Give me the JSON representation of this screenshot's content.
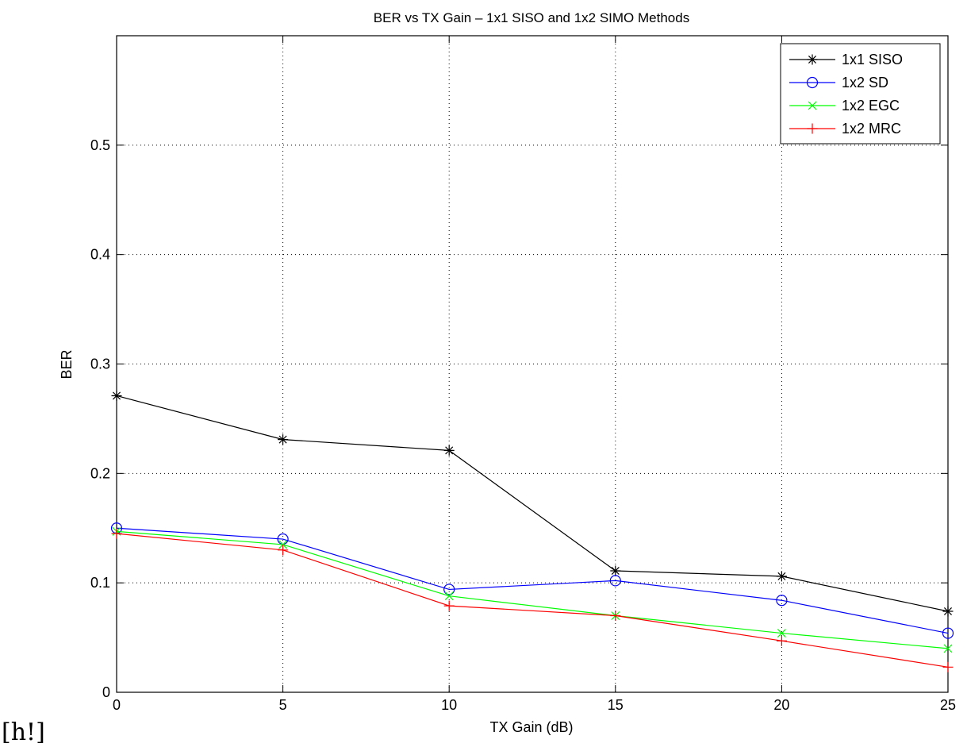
{
  "chart_data": {
    "type": "line",
    "title": "BER vs TX Gain – 1x1 SISO and 1x2 SIMO Methods",
    "xlabel": "TX Gain (dB)",
    "ylabel": "BER",
    "xlim": [
      0,
      25
    ],
    "ylim": [
      0,
      0.6
    ],
    "x_ticks": [
      0,
      5,
      10,
      15,
      20,
      25
    ],
    "y_ticks": [
      0,
      0.1,
      0.2,
      0.3,
      0.4,
      0.5
    ],
    "x_tick_labels": [
      "0",
      "5",
      "10",
      "15",
      "20",
      "25"
    ],
    "y_tick_labels": [
      "0",
      "0.1",
      "0.2",
      "0.3",
      "0.4",
      "0.5"
    ],
    "grid": true,
    "legend_position": "top-right",
    "x": [
      0,
      5,
      10,
      15,
      20,
      25
    ],
    "series": [
      {
        "name": "1x1 SISO",
        "color": "#000000",
        "marker": "asterisk",
        "values": [
          0.271,
          0.231,
          0.221,
          0.111,
          0.106,
          0.074
        ]
      },
      {
        "name": "1x2 SD",
        "color": "#0000ff",
        "marker": "circle",
        "values": [
          0.15,
          0.14,
          0.094,
          0.102,
          0.084,
          0.054
        ]
      },
      {
        "name": "1x2 EGC",
        "color": "#00ff00",
        "marker": "x",
        "values": [
          0.147,
          0.135,
          0.088,
          0.07,
          0.054,
          0.04
        ]
      },
      {
        "name": "1x2 MRC",
        "color": "#ff0000",
        "marker": "plus",
        "values": [
          0.145,
          0.13,
          0.079,
          0.07,
          0.047,
          0.023
        ]
      }
    ]
  },
  "caption": "[h!]"
}
